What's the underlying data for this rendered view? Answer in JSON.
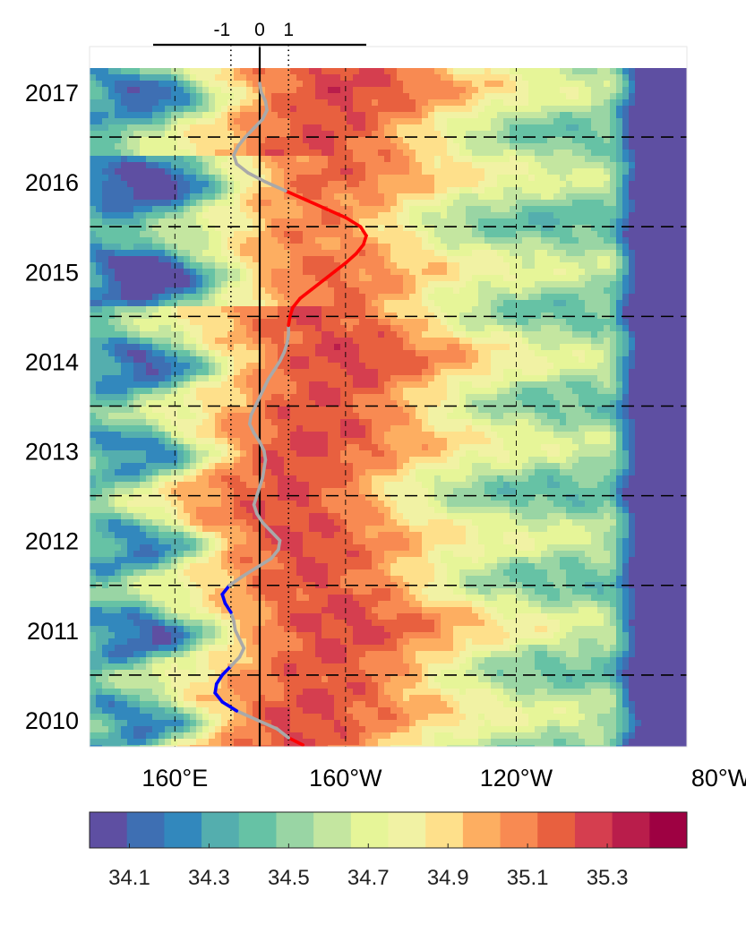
{
  "chart_data": {
    "type": "heatmap",
    "title": "",
    "x_axis": {
      "ticks": [
        160,
        200,
        240,
        280
      ],
      "tick_labels": [
        "160°E",
        "160°W",
        "120°W",
        "80°W"
      ],
      "range": [
        140,
        280
      ]
    },
    "y_axis": {
      "tick_labels": [
        "2010",
        "2011",
        "2012",
        "2013",
        "2014",
        "2015",
        "2016",
        "2017"
      ],
      "range": [
        2009.7,
        2017.27
      ]
    },
    "index_axis": {
      "tick_labels": [
        "-1",
        "0",
        "1"
      ],
      "ticks": [
        -1,
        0,
        1
      ],
      "range": [
        -3.7,
        3.7
      ]
    },
    "colorbar": {
      "levels": [
        34.0,
        34.1,
        34.2,
        34.3,
        34.4,
        34.5,
        34.6,
        34.7,
        34.8,
        34.9,
        35.0,
        35.1,
        35.2,
        35.3,
        35.4,
        35.5
      ],
      "colors": [
        "#5e4fa2",
        "#3e6fb3",
        "#3288bd",
        "#54aeae",
        "#66c2a5",
        "#99d5a4",
        "#c4e6a0",
        "#e6f598",
        "#f1f2a4",
        "#fee08b",
        "#fdae61",
        "#f88a52",
        "#e8603f",
        "#d53e4f",
        "#b91d4b",
        "#9e0142"
      ],
      "tick_labels": [
        "34.1",
        "34.3",
        "34.5",
        "34.7",
        "34.9",
        "35.1",
        "35.3"
      ]
    },
    "dashed_year_lines": [
      2010.5,
      2011.5,
      2012.5,
      2013.5,
      2014.5,
      2015.5,
      2016.5
    ],
    "dashed_lon_lines": [
      160,
      200,
      240
    ],
    "index_curve": {
      "t": [
        2009.72,
        2009.8,
        2009.9,
        2010.0,
        2010.1,
        2010.2,
        2010.3,
        2010.4,
        2010.5,
        2010.6,
        2010.7,
        2010.8,
        2010.9,
        2011.0,
        2011.1,
        2011.2,
        2011.3,
        2011.4,
        2011.5,
        2011.6,
        2011.7,
        2011.8,
        2011.9,
        2012.0,
        2012.1,
        2012.2,
        2012.3,
        2012.4,
        2012.5,
        2012.6,
        2012.7,
        2012.8,
        2012.9,
        2013.0,
        2013.1,
        2013.2,
        2013.3,
        2013.4,
        2013.5,
        2013.6,
        2013.7,
        2013.8,
        2013.9,
        2014.0,
        2014.1,
        2014.2,
        2014.3,
        2014.4,
        2014.5,
        2014.6,
        2014.7,
        2014.8,
        2014.9,
        2015.0,
        2015.1,
        2015.2,
        2015.3,
        2015.4,
        2015.5,
        2015.6,
        2015.7,
        2015.8,
        2015.9,
        2016.0,
        2016.1,
        2016.2,
        2016.3,
        2016.4,
        2016.5,
        2016.6,
        2016.7,
        2016.8,
        2016.9,
        2017.0,
        2017.1
      ],
      "value": [
        1.5,
        1.0,
        0.6,
        -0.1,
        -0.8,
        -1.3,
        -1.55,
        -1.5,
        -1.3,
        -1.0,
        -0.7,
        -0.55,
        -0.7,
        -0.85,
        -0.9,
        -1.0,
        -1.2,
        -1.3,
        -1.05,
        -0.6,
        -0.1,
        0.4,
        0.65,
        0.7,
        0.4,
        0.1,
        -0.1,
        -0.2,
        -0.1,
        0.0,
        0.1,
        0.15,
        0.2,
        0.15,
        0.0,
        -0.2,
        -0.35,
        -0.3,
        -0.15,
        0.0,
        0.15,
        0.3,
        0.5,
        0.7,
        0.85,
        0.95,
        1.0,
        1.0,
        1.05,
        1.15,
        1.4,
        1.8,
        2.2,
        2.6,
        3.0,
        3.35,
        3.6,
        3.7,
        3.5,
        3.0,
        2.3,
        1.6,
        0.9,
        0.2,
        -0.4,
        -0.8,
        -0.9,
        -0.75,
        -0.5,
        -0.2,
        0.1,
        0.25,
        0.2,
        0.05,
        0.0
      ],
      "colors": {
        "neutral": "#a9a9a9",
        "positive": "#ff0000",
        "negative": "#0000ff"
      }
    }
  }
}
